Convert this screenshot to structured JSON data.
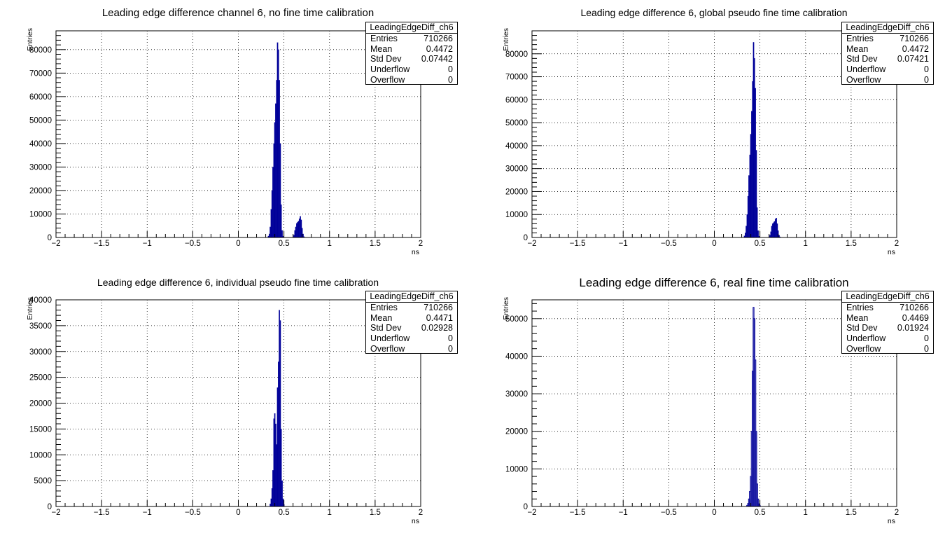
{
  "colors": {
    "fill": "#000099",
    "line": "#000099",
    "grid": "#000000",
    "background": "#ffffff"
  },
  "chart_data": [
    {
      "type": "bar",
      "title": "Leading edge difference channel 6, no fine time calibration",
      "xlabel": "ns",
      "ylabel": "Entries",
      "xlim": [
        -2,
        2
      ],
      "ylim": [
        0,
        88000
      ],
      "xticks": [
        "-2",
        "-1.5",
        "-1",
        "-0.5",
        "0",
        "0.5",
        "1",
        "1.5",
        "2"
      ],
      "yticks": [
        "0",
        "10000",
        "20000",
        "30000",
        "40000",
        "50000",
        "60000",
        "70000",
        "80000"
      ],
      "grid": true,
      "filled": true,
      "stats": {
        "name": "LeadingEdgeDiff_ch6",
        "entries": "710266",
        "mean": "0.4472",
        "std_dev": "0.07442",
        "underflow": "0",
        "overflow": "0"
      },
      "bins": [
        {
          "x": 0.33,
          "y": 600
        },
        {
          "x": 0.34,
          "y": 1500
        },
        {
          "x": 0.35,
          "y": 4500
        },
        {
          "x": 0.36,
          "y": 12000
        },
        {
          "x": 0.37,
          "y": 20000
        },
        {
          "x": 0.38,
          "y": 30000
        },
        {
          "x": 0.39,
          "y": 40000
        },
        {
          "x": 0.4,
          "y": 49000
        },
        {
          "x": 0.41,
          "y": 57000
        },
        {
          "x": 0.42,
          "y": 67000
        },
        {
          "x": 0.43,
          "y": 83000
        },
        {
          "x": 0.44,
          "y": 80000
        },
        {
          "x": 0.45,
          "y": 67000
        },
        {
          "x": 0.46,
          "y": 40000
        },
        {
          "x": 0.47,
          "y": 14000
        },
        {
          "x": 0.48,
          "y": 3000
        },
        {
          "x": 0.49,
          "y": 500
        },
        {
          "x": 0.61,
          "y": 1000
        },
        {
          "x": 0.62,
          "y": 3000
        },
        {
          "x": 0.63,
          "y": 4500
        },
        {
          "x": 0.64,
          "y": 6000
        },
        {
          "x": 0.65,
          "y": 6500
        },
        {
          "x": 0.66,
          "y": 7000
        },
        {
          "x": 0.67,
          "y": 8000
        },
        {
          "x": 0.68,
          "y": 9000
        },
        {
          "x": 0.69,
          "y": 7500
        },
        {
          "x": 0.7,
          "y": 4000
        },
        {
          "x": 0.71,
          "y": 1500
        },
        {
          "x": 0.72,
          "y": 400
        }
      ]
    },
    {
      "type": "bar",
      "title": "Leading edge difference 6, global pseudo fine time calibration",
      "xlabel": "ns",
      "ylabel": "Entries",
      "xlim": [
        -2,
        2
      ],
      "ylim": [
        0,
        90000
      ],
      "xticks": [
        "-2",
        "-1.5",
        "-1",
        "-0.5",
        "0",
        "0.5",
        "1",
        "1.5",
        "2"
      ],
      "yticks": [
        "0",
        "10000",
        "20000",
        "30000",
        "40000",
        "50000",
        "60000",
        "70000",
        "80000"
      ],
      "grid": true,
      "filled": true,
      "stats": {
        "name": "LeadingEdgeDiff_ch6",
        "entries": "710266",
        "mean": "0.4472",
        "std_dev": "0.07421",
        "underflow": "0",
        "overflow": "0"
      },
      "bins": [
        {
          "x": 0.33,
          "y": 700
        },
        {
          "x": 0.34,
          "y": 2000
        },
        {
          "x": 0.35,
          "y": 5000
        },
        {
          "x": 0.36,
          "y": 10000
        },
        {
          "x": 0.37,
          "y": 18000
        },
        {
          "x": 0.38,
          "y": 27000
        },
        {
          "x": 0.39,
          "y": 36000
        },
        {
          "x": 0.4,
          "y": 45000
        },
        {
          "x": 0.41,
          "y": 55000
        },
        {
          "x": 0.42,
          "y": 68000
        },
        {
          "x": 0.43,
          "y": 85000
        },
        {
          "x": 0.44,
          "y": 78000
        },
        {
          "x": 0.45,
          "y": 65000
        },
        {
          "x": 0.46,
          "y": 38000
        },
        {
          "x": 0.47,
          "y": 13000
        },
        {
          "x": 0.48,
          "y": 3000
        },
        {
          "x": 0.49,
          "y": 500
        },
        {
          "x": 0.61,
          "y": 1000
        },
        {
          "x": 0.62,
          "y": 2500
        },
        {
          "x": 0.63,
          "y": 5000
        },
        {
          "x": 0.64,
          "y": 6000
        },
        {
          "x": 0.65,
          "y": 6500
        },
        {
          "x": 0.66,
          "y": 7000
        },
        {
          "x": 0.67,
          "y": 8000
        },
        {
          "x": 0.68,
          "y": 8500
        },
        {
          "x": 0.69,
          "y": 6000
        },
        {
          "x": 0.7,
          "y": 3000
        },
        {
          "x": 0.71,
          "y": 1000
        },
        {
          "x": 0.72,
          "y": 300
        }
      ]
    },
    {
      "type": "bar",
      "title": "Leading edge difference 6, individual pseudo fine time calibration",
      "xlabel": "ns",
      "ylabel": "Entries",
      "xlim": [
        -2,
        2
      ],
      "ylim": [
        0,
        40000
      ],
      "xticks": [
        "-2",
        "-1.5",
        "-1",
        "-0.5",
        "0",
        "0.5",
        "1",
        "1.5",
        "2"
      ],
      "yticks": [
        "0",
        "5000",
        "10000",
        "15000",
        "20000",
        "25000",
        "30000",
        "35000",
        "40000"
      ],
      "grid": true,
      "filled": true,
      "stats": {
        "name": "LeadingEdgeDiff_ch6",
        "entries": "710266",
        "mean": "0.4471",
        "std_dev": "0.02928",
        "underflow": "0",
        "overflow": "0"
      },
      "bins": [
        {
          "x": 0.35,
          "y": 500
        },
        {
          "x": 0.36,
          "y": 1500
        },
        {
          "x": 0.37,
          "y": 3500
        },
        {
          "x": 0.38,
          "y": 7000
        },
        {
          "x": 0.39,
          "y": 17000
        },
        {
          "x": 0.4,
          "y": 18000
        },
        {
          "x": 0.41,
          "y": 16000
        },
        {
          "x": 0.42,
          "y": 12000
        },
        {
          "x": 0.43,
          "y": 23000
        },
        {
          "x": 0.44,
          "y": 28000
        },
        {
          "x": 0.45,
          "y": 38000
        },
        {
          "x": 0.46,
          "y": 36000
        },
        {
          "x": 0.47,
          "y": 15000
        },
        {
          "x": 0.48,
          "y": 5000
        },
        {
          "x": 0.49,
          "y": 1500
        },
        {
          "x": 0.5,
          "y": 400
        }
      ]
    },
    {
      "type": "bar",
      "title": "Leading edge difference 6, real fine time calibration",
      "xlabel": "ns",
      "ylabel": "Entries",
      "xlim": [
        -2,
        2
      ],
      "ylim": [
        0,
        55000
      ],
      "xticks": [
        "-2",
        "-1.5",
        "-1",
        "-0.5",
        "0",
        "0.5",
        "1",
        "1.5",
        "2"
      ],
      "yticks": [
        "0",
        "10000",
        "20000",
        "30000",
        "40000",
        "50000"
      ],
      "grid": true,
      "filled": false,
      "stats": {
        "name": "LeadingEdgeDiff_ch6",
        "entries": "710266",
        "mean": "0.4469",
        "std_dev": "0.01924",
        "underflow": "0",
        "overflow": "0"
      },
      "bins": [
        {
          "x": 0.36,
          "y": 300
        },
        {
          "x": 0.37,
          "y": 800
        },
        {
          "x": 0.38,
          "y": 2000
        },
        {
          "x": 0.39,
          "y": 4000
        },
        {
          "x": 0.4,
          "y": 8000
        },
        {
          "x": 0.41,
          "y": 20000
        },
        {
          "x": 0.42,
          "y": 36000
        },
        {
          "x": 0.43,
          "y": 53000
        },
        {
          "x": 0.44,
          "y": 50000
        },
        {
          "x": 0.45,
          "y": 39000
        },
        {
          "x": 0.46,
          "y": 20000
        },
        {
          "x": 0.47,
          "y": 6000
        },
        {
          "x": 0.48,
          "y": 2000
        },
        {
          "x": 0.49,
          "y": 700
        },
        {
          "x": 0.5,
          "y": 200
        }
      ]
    }
  ]
}
